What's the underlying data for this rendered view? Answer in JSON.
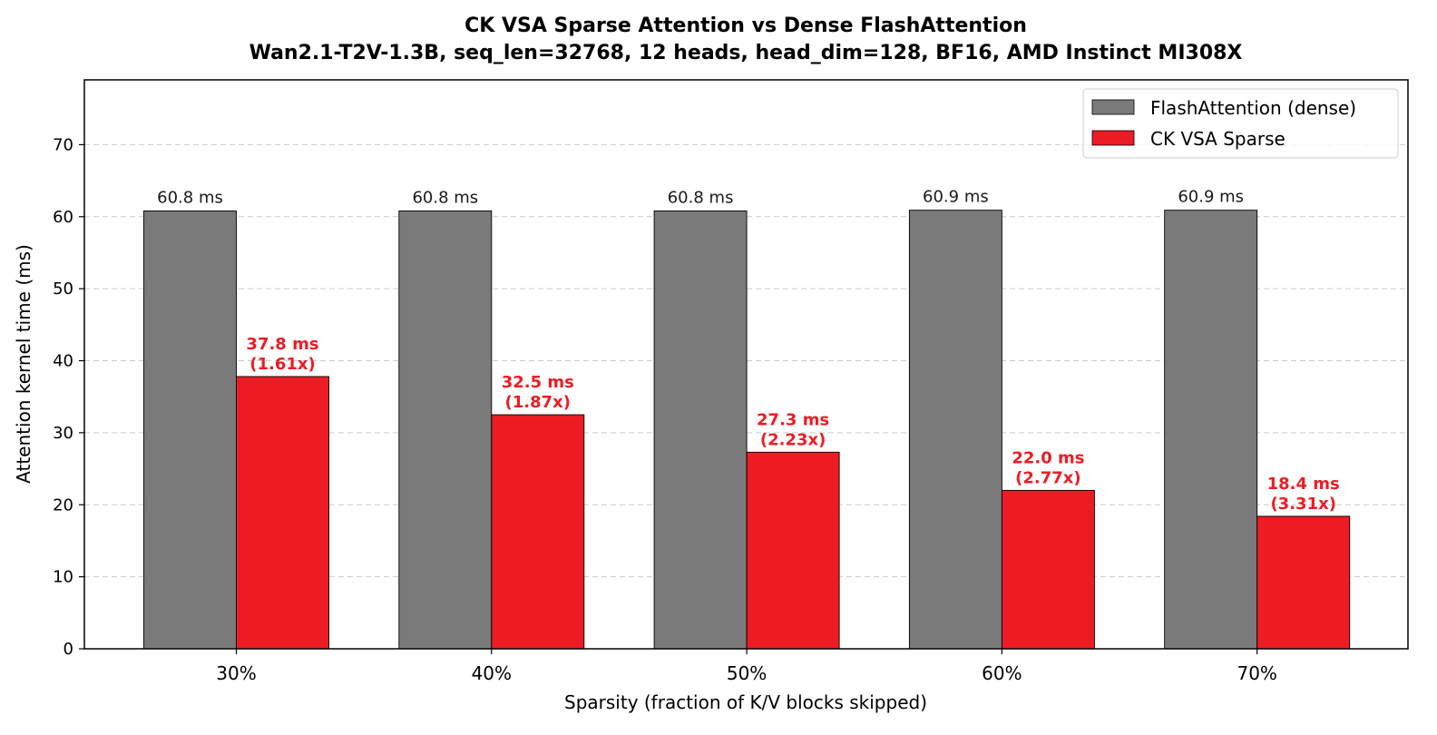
{
  "chart_data": {
    "type": "bar",
    "title": "CK VSA Sparse Attention vs Dense FlashAttention",
    "subtitle": "Wan2.1-T2V-1.3B, seq_len=32768, 12 heads, head_dim=128, BF16, AMD Instinct MI308X",
    "xlabel": "Sparsity (fraction of K/V blocks skipped)",
    "ylabel": "Attention kernel time (ms)",
    "ylim": [
      0,
      79
    ],
    "yticks": [
      0,
      10,
      20,
      30,
      40,
      50,
      60,
      70
    ],
    "grid": "y, dashed",
    "legend_position": "top-right",
    "categories": [
      "30%",
      "40%",
      "50%",
      "60%",
      "70%"
    ],
    "series": [
      {
        "name": "FlashAttention (dense)",
        "color": "#7a7a7a",
        "values": [
          60.8,
          60.8,
          60.8,
          60.9,
          60.9
        ],
        "labels": [
          "60.8 ms",
          "60.8 ms",
          "60.8 ms",
          "60.9 ms",
          "60.9 ms"
        ]
      },
      {
        "name": "CK VSA Sparse",
        "color": "#ed1c24",
        "values": [
          37.8,
          32.5,
          27.3,
          22.0,
          18.4
        ],
        "labels": [
          "37.8 ms",
          "32.5 ms",
          "27.3 ms",
          "22.0 ms",
          "18.4 ms"
        ],
        "speedups": [
          "(1.61x)",
          "(1.87x)",
          "(2.23x)",
          "(2.77x)",
          "(3.31x)"
        ]
      }
    ]
  }
}
